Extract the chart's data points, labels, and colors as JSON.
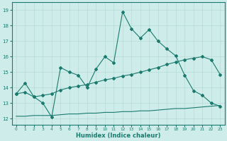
{
  "xlabel": "Humidex (Indice chaleur)",
  "background_color": "#ceecea",
  "line_color": "#1a7a6e",
  "xlim": [
    -0.5,
    23.5
  ],
  "ylim": [
    11.6,
    19.5
  ],
  "xticks": [
    0,
    1,
    2,
    3,
    4,
    5,
    6,
    7,
    8,
    9,
    10,
    11,
    12,
    13,
    14,
    15,
    16,
    17,
    18,
    19,
    20,
    21,
    22,
    23
  ],
  "yticks": [
    12,
    13,
    14,
    15,
    16,
    17,
    18,
    19
  ],
  "grid_color": "#b8dbd8",
  "line1_x": [
    0,
    1,
    2,
    3,
    4,
    5,
    6,
    7,
    8,
    9,
    10,
    11,
    12,
    13,
    14,
    15,
    16,
    17,
    18,
    19,
    20,
    21,
    22,
    23
  ],
  "line1_y": [
    13.6,
    14.3,
    13.4,
    13.0,
    12.1,
    15.3,
    15.0,
    14.8,
    14.0,
    15.2,
    16.0,
    15.6,
    18.9,
    17.8,
    17.2,
    17.75,
    17.0,
    16.5,
    16.05,
    14.8,
    13.8,
    13.5,
    13.0,
    12.8
  ],
  "line2_x": [
    0,
    1,
    2,
    3,
    4,
    5,
    6,
    7,
    8,
    9,
    10,
    11,
    12,
    13,
    14,
    15,
    16,
    17,
    18,
    19,
    20,
    21,
    22,
    23
  ],
  "line2_y": [
    13.6,
    13.7,
    13.4,
    13.5,
    13.6,
    13.85,
    14.0,
    14.1,
    14.2,
    14.35,
    14.5,
    14.6,
    14.75,
    14.85,
    15.0,
    15.15,
    15.3,
    15.5,
    15.65,
    15.8,
    15.9,
    16.0,
    15.8,
    14.85
  ],
  "line3_x": [
    0,
    1,
    2,
    3,
    4,
    5,
    6,
    7,
    8,
    9,
    10,
    11,
    12,
    13,
    14,
    15,
    16,
    17,
    18,
    19,
    20,
    21,
    22,
    23
  ],
  "line3_y": [
    12.15,
    12.15,
    12.2,
    12.2,
    12.2,
    12.25,
    12.3,
    12.3,
    12.35,
    12.35,
    12.4,
    12.4,
    12.45,
    12.45,
    12.5,
    12.5,
    12.55,
    12.6,
    12.65,
    12.65,
    12.7,
    12.75,
    12.8,
    12.85
  ]
}
